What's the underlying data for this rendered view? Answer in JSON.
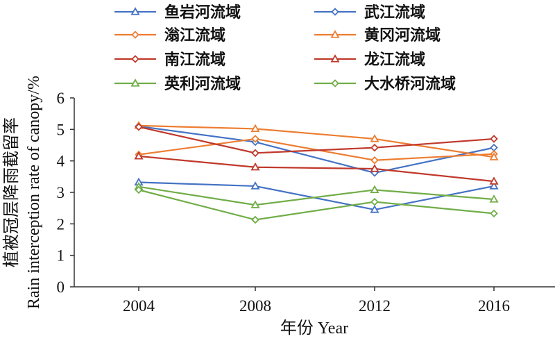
{
  "chart_data": {
    "type": "line",
    "xlabel": "年份 Year",
    "ylabel_cn": "植被冠层降雨截留率",
    "ylabel_en": "Rain interception rate of canopy/%",
    "x": [
      "2004",
      "2008",
      "2012",
      "2016"
    ],
    "ylim": [
      0,
      6
    ],
    "yticks": [
      "0",
      "1",
      "2",
      "3",
      "4",
      "5",
      "6"
    ],
    "grid": false,
    "legend_position": "top",
    "series": [
      {
        "name": "鱼岩河流域",
        "color": "#4472C4",
        "marker": "triangle",
        "values": [
          3.32,
          3.2,
          2.45,
          3.2
        ]
      },
      {
        "name": "武江流域",
        "color": "#4472C4",
        "marker": "diamond",
        "values": [
          5.1,
          4.6,
          3.62,
          4.42
        ]
      },
      {
        "name": "滃江流域",
        "color": "#ED7D31",
        "marker": "diamond",
        "values": [
          4.2,
          4.7,
          4.02,
          4.22
        ]
      },
      {
        "name": "黄冈河流域",
        "color": "#ED7D31",
        "marker": "triangle",
        "values": [
          5.12,
          5.02,
          4.7,
          4.12
        ]
      },
      {
        "name": "南江流域",
        "color": "#C0392B",
        "marker": "diamond",
        "values": [
          5.08,
          4.25,
          4.42,
          4.7
        ]
      },
      {
        "name": "龙江流域",
        "color": "#C0392B",
        "marker": "triangle",
        "values": [
          4.15,
          3.8,
          3.75,
          3.35
        ]
      },
      {
        "name": "英利河流域",
        "color": "#70AD47",
        "marker": "triangle",
        "values": [
          3.18,
          2.6,
          3.08,
          2.78
        ]
      },
      {
        "name": "大水桥河流域",
        "color": "#70AD47",
        "marker": "diamond",
        "values": [
          3.08,
          2.13,
          2.7,
          2.33
        ]
      }
    ]
  }
}
